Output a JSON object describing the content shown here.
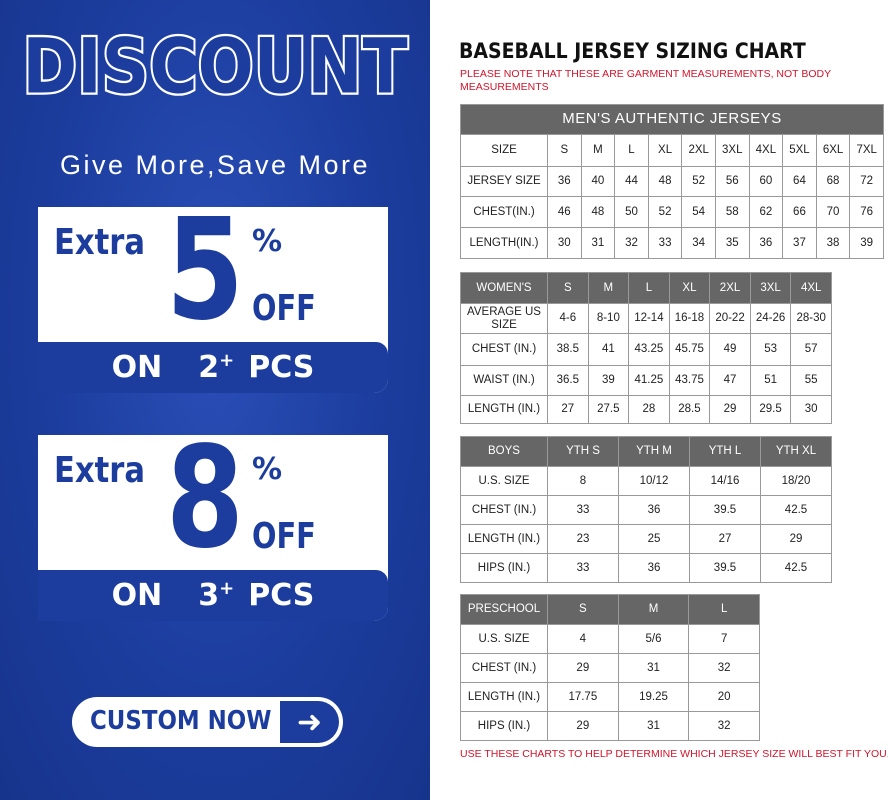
{
  "promo": {
    "headline": "DISCOUNT",
    "tagline": "Give More,Save More",
    "offers": [
      {
        "label": "Extra",
        "value": "5",
        "percent": "%",
        "off": "OFF",
        "on": "ON",
        "qty": "2",
        "plus": "+",
        "pcs": "PCS"
      },
      {
        "label": "Extra",
        "value": "8",
        "percent": "%",
        "off": "OFF",
        "on": "ON",
        "qty": "3",
        "plus": "+",
        "pcs": "PCS"
      }
    ],
    "cta_label": "CUSTOM NOW",
    "cta_icon": "arrow-right-icon",
    "brand_color": "#1c3d9e"
  },
  "chart": {
    "title": "BASEBALL JERSEY SIZING CHART",
    "note": "PLEASE NOTE THAT THESE ARE GARMENT MEASUREMENTS, NOT BODY MEASUREMENTS",
    "footer": "USE THESE CHARTS TO HELP DETERMINE WHICH JERSEY SIZE WILL BEST FIT YOU.",
    "note_color": "#d3142c",
    "header_color": "#666666",
    "mens": {
      "banner": "MEN'S AUTHENTIC JERSEYS",
      "rows": [
        [
          "SIZE",
          "S",
          "M",
          "L",
          "XL",
          "2XL",
          "3XL",
          "4XL",
          "5XL",
          "6XL",
          "7XL"
        ],
        [
          "JERSEY SIZE",
          "36",
          "40",
          "44",
          "48",
          "52",
          "56",
          "60",
          "64",
          "68",
          "72"
        ],
        [
          "CHEST(IN.)",
          "46",
          "48",
          "50",
          "52",
          "54",
          "58",
          "62",
          "66",
          "70",
          "76"
        ],
        [
          "LENGTH(IN.)",
          "30",
          "31",
          "32",
          "33",
          "34",
          "35",
          "36",
          "37",
          "38",
          "39"
        ]
      ]
    },
    "womens": {
      "header": [
        "WOMEN'S",
        "S",
        "M",
        "L",
        "XL",
        "2XL",
        "3XL",
        "4XL"
      ],
      "rows": [
        [
          "AVERAGE US SIZE",
          "4-6",
          "8-10",
          "12-14",
          "16-18",
          "20-22",
          "24-26",
          "28-30"
        ],
        [
          "CHEST (IN.)",
          "38.5",
          "41",
          "43.25",
          "45.75",
          "49",
          "53",
          "57"
        ],
        [
          "WAIST (IN.)",
          "36.5",
          "39",
          "41.25",
          "43.75",
          "47",
          "51",
          "55"
        ],
        [
          "LENGTH (IN.)",
          "27",
          "27.5",
          "28",
          "28.5",
          "29",
          "29.5",
          "30"
        ]
      ]
    },
    "boys": {
      "header": [
        "BOYS",
        "YTH S",
        "YTH M",
        "YTH L",
        "YTH XL"
      ],
      "rows": [
        [
          "U.S. SIZE",
          "8",
          "10/12",
          "14/16",
          "18/20"
        ],
        [
          "CHEST (IN.)",
          "33",
          "36",
          "39.5",
          "42.5"
        ],
        [
          "LENGTH (IN.)",
          "23",
          "25",
          "27",
          "29"
        ],
        [
          "HIPS (IN.)",
          "33",
          "36",
          "39.5",
          "42.5"
        ]
      ]
    },
    "preschool": {
      "header": [
        "PRESCHOOL",
        "S",
        "M",
        "L"
      ],
      "rows": [
        [
          "U.S. SIZE",
          "4",
          "5/6",
          "7"
        ],
        [
          "CHEST (IN.)",
          "29",
          "31",
          "32"
        ],
        [
          "LENGTH (IN.)",
          "17.75",
          "19.25",
          "20"
        ],
        [
          "HIPS (IN.)",
          "29",
          "31",
          "32"
        ]
      ]
    }
  }
}
